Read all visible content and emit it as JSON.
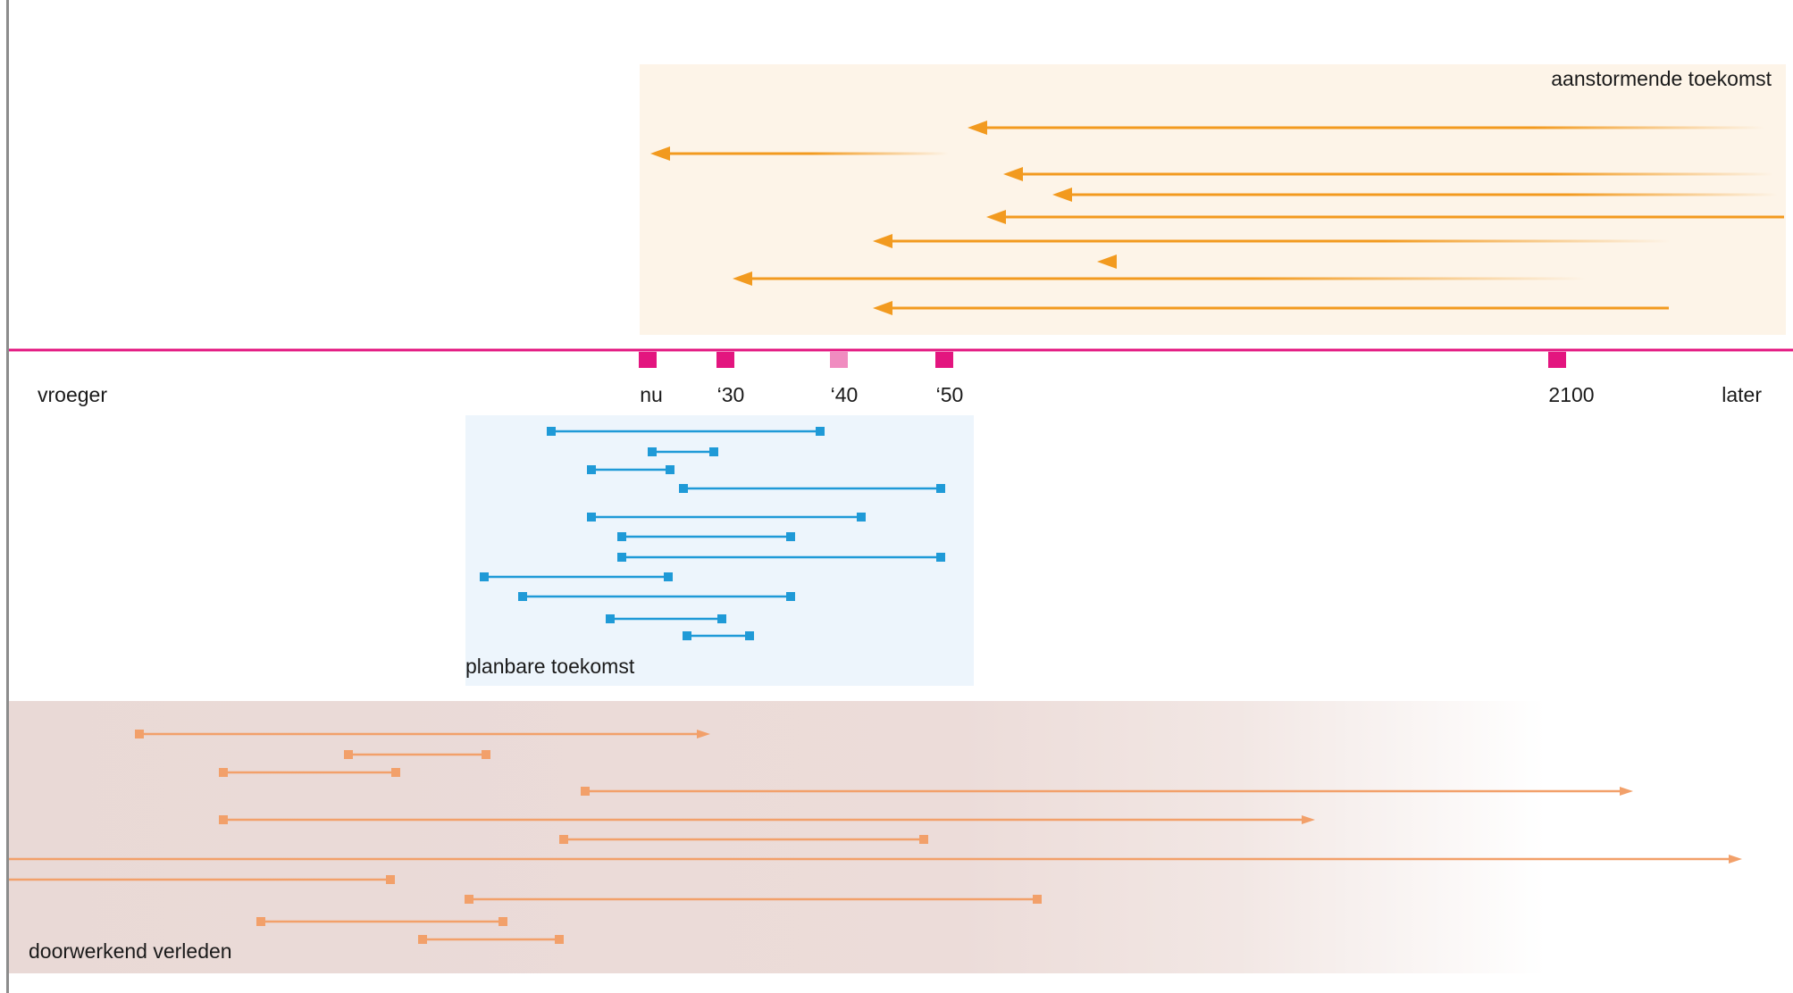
{
  "colors": {
    "timeline": "#e3157f",
    "tick_marker": "#e3157f",
    "tick_marker_light": "#f08cc0",
    "future_fill": "#fdf4e8",
    "future_arrow": "#f29a1f",
    "planned_fill": "#edf5fc",
    "planned_line": "#1f9ad7",
    "past_fill": "#ecdcd8",
    "past_line": "#f2a06a"
  },
  "timeline": {
    "earlier_label": "vroeger",
    "later_label": "later",
    "ticks": [
      {
        "label": "nu",
        "year": 2024,
        "highlight": false
      },
      {
        "label": "‘30",
        "year": 2030,
        "highlight": false
      },
      {
        "label": "‘40",
        "year": 2040,
        "highlight": true
      },
      {
        "label": "‘50",
        "year": 2050,
        "highlight": false
      },
      {
        "label": "2100",
        "year": 2100,
        "highlight": false
      }
    ]
  },
  "zones": {
    "future": {
      "label": "aanstormende toekomst"
    },
    "planned": {
      "label": "planbare toekomst"
    },
    "past": {
      "label": "doorwerkend verleden"
    }
  }
}
